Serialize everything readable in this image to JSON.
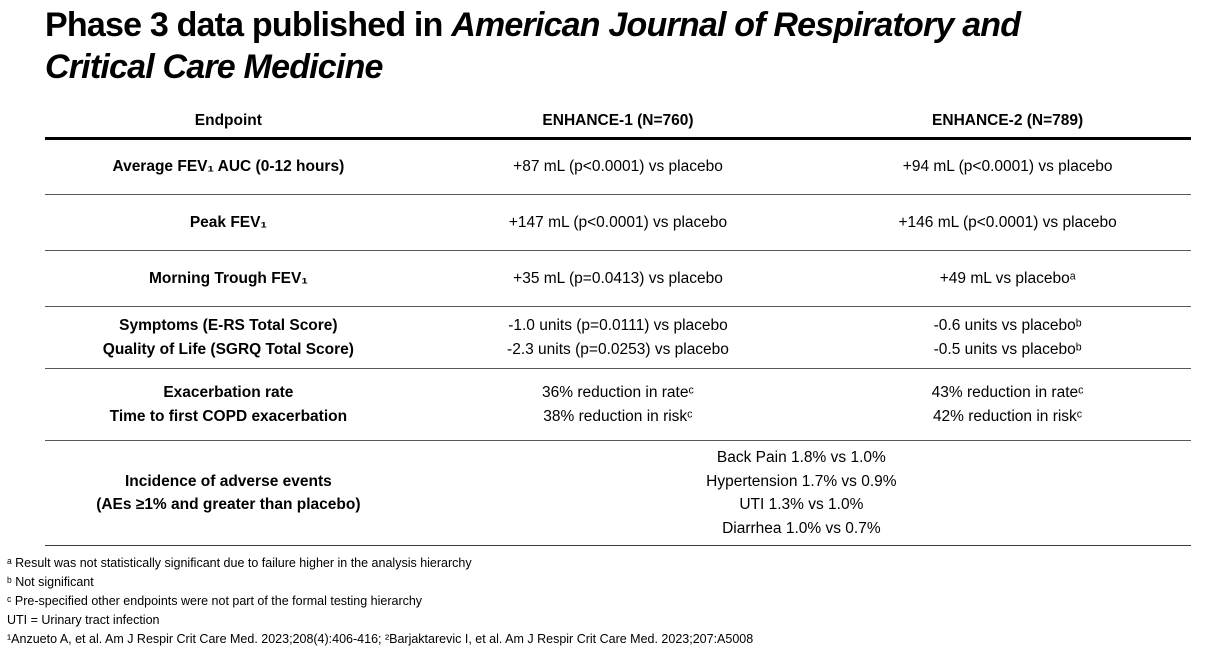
{
  "title": {
    "prefix": "Phase 3 data published in ",
    "italic_line1": "American Journal of Respiratory and",
    "italic_line2": "Critical Care Medicine"
  },
  "table": {
    "headers": [
      "Endpoint",
      "ENHANCE-1 (N=760)",
      "ENHANCE-2 (N=789)"
    ],
    "rows": [
      {
        "endpoint": [
          "Average FEV₁ AUC (0-12 hours)"
        ],
        "enhance1": [
          "+87 mL (p<0.0001) vs placebo"
        ],
        "enhance2": [
          "+94 mL (p<0.0001) vs placebo"
        ]
      },
      {
        "endpoint": [
          "Peak FEV₁"
        ],
        "enhance1": [
          "+147 mL (p<0.0001) vs placebo"
        ],
        "enhance2": [
          "+146 mL (p<0.0001) vs placebo"
        ]
      },
      {
        "endpoint": [
          "Morning Trough FEV₁"
        ],
        "enhance1": [
          "+35 mL (p=0.0413) vs placebo"
        ],
        "enhance2": [
          "+49 mL vs placeboᵃ"
        ]
      },
      {
        "endpoint": [
          "Symptoms (E-RS Total Score)",
          "Quality of Life (SGRQ Total Score)"
        ],
        "enhance1": [
          "-1.0 units (p=0.0111) vs placebo",
          "-2.3 units (p=0.0253) vs placebo"
        ],
        "enhance2": [
          "-0.6 units vs placeboᵇ",
          "-0.5 units vs placeboᵇ"
        ]
      },
      {
        "endpoint": [
          "Exacerbation rate",
          "Time to first COPD exacerbation"
        ],
        "enhance1": [
          "36% reduction in rateᶜ",
          "38% reduction in riskᶜ"
        ],
        "enhance2": [
          "43% reduction in rateᶜ",
          "42% reduction in riskᶜ"
        ]
      },
      {
        "endpoint": [
          "Incidence of adverse events",
          "(AEs ≥1% and greater than placebo)"
        ],
        "combined": [
          "Back Pain 1.8% vs 1.0%",
          "Hypertension 1.7% vs 0.9%",
          "UTI 1.3% vs 1.0%",
          "Diarrhea 1.0% vs 0.7%"
        ]
      }
    ]
  },
  "footnotes": [
    "ᵃ Result was not statistically significant due to failure higher in the analysis hierarchy",
    "ᵇ Not significant",
    "ᶜ Pre-specified other endpoints were not part of the formal testing hierarchy",
    "UTI = Urinary tract infection",
    "¹Anzueto A, et al. Am J Respir Crit Care Med. 2023;208(4):406-416; ²Barjaktarevic I, et al. Am J Respir Crit Care Med. 2023;207:A5008"
  ],
  "colors": {
    "text": "#000000",
    "header_rule": "#000000",
    "row_rule": "#595959",
    "background": "#ffffff"
  }
}
